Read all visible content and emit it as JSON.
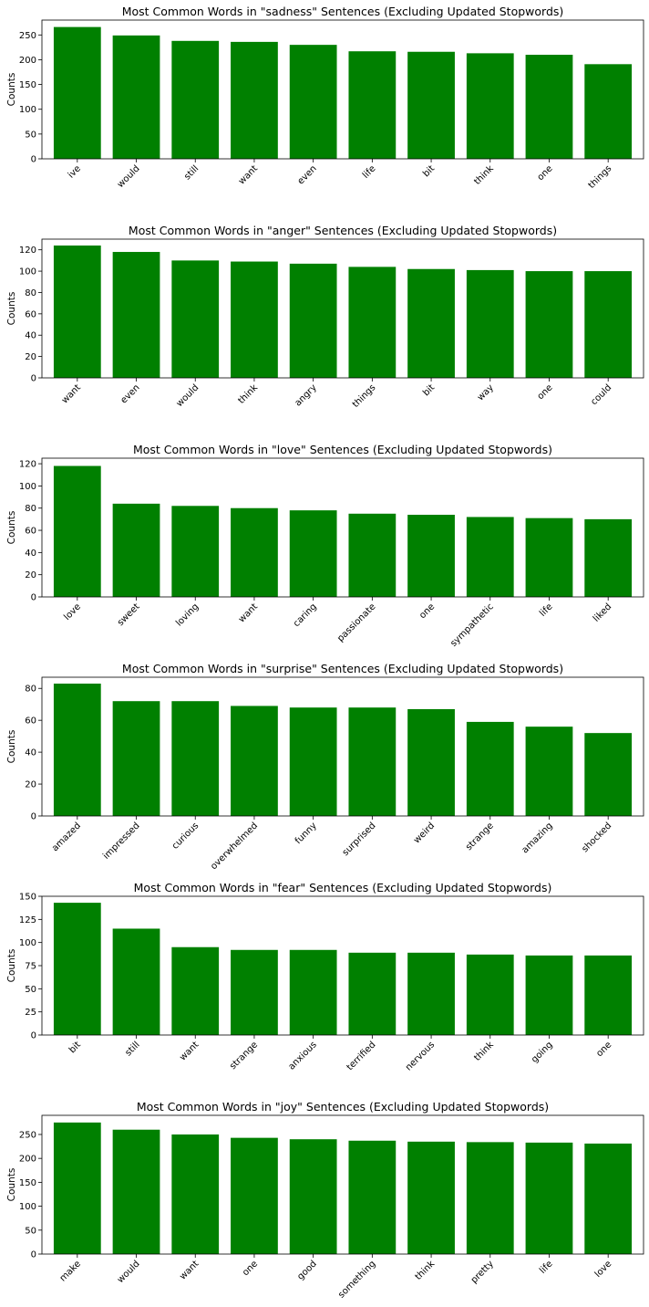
{
  "chart_data": [
    {
      "type": "bar",
      "title": "Most Common Words in \"sadness\" Sentences (Excluding Updated Stopwords)",
      "xlabel": "",
      "ylabel": "Counts",
      "ylim": [
        0,
        280
      ],
      "yticks": [
        0,
        50,
        100,
        150,
        200,
        250
      ],
      "color": "#008000",
      "categories": [
        "ive",
        "would",
        "still",
        "want",
        "even",
        "life",
        "bit",
        "think",
        "one",
        "things"
      ],
      "values": [
        266,
        249,
        238,
        236,
        230,
        217,
        216,
        213,
        210,
        191
      ]
    },
    {
      "type": "bar",
      "title": "Most Common Words in \"anger\" Sentences (Excluding Updated Stopwords)",
      "xlabel": "",
      "ylabel": "Counts",
      "ylim": [
        0,
        130
      ],
      "yticks": [
        0,
        20,
        40,
        60,
        80,
        100,
        120
      ],
      "color": "#008000",
      "categories": [
        "want",
        "even",
        "would",
        "think",
        "angry",
        "things",
        "bit",
        "way",
        "one",
        "could"
      ],
      "values": [
        124,
        118,
        110,
        109,
        107,
        104,
        102,
        101,
        100,
        100
      ]
    },
    {
      "type": "bar",
      "title": "Most Common Words in \"love\" Sentences (Excluding Updated Stopwords)",
      "xlabel": "",
      "ylabel": "Counts",
      "ylim": [
        0,
        125
      ],
      "yticks": [
        0,
        20,
        40,
        60,
        80,
        100,
        120
      ],
      "color": "#008000",
      "categories": [
        "love",
        "sweet",
        "loving",
        "want",
        "caring",
        "passionate",
        "one",
        "sympathetic",
        "life",
        "liked"
      ],
      "values": [
        118,
        84,
        82,
        80,
        78,
        75,
        74,
        72,
        71,
        70
      ]
    },
    {
      "type": "bar",
      "title": "Most Common Words in \"surprise\" Sentences (Excluding Updated Stopwords)",
      "xlabel": "",
      "ylabel": "Counts",
      "ylim": [
        0,
        87
      ],
      "yticks": [
        0,
        20,
        40,
        60,
        80
      ],
      "color": "#008000",
      "categories": [
        "amazed",
        "impressed",
        "curious",
        "overwhelmed",
        "funny",
        "surprised",
        "weird",
        "strange",
        "amazing",
        "shocked"
      ],
      "values": [
        83,
        72,
        72,
        69,
        68,
        68,
        67,
        59,
        56,
        52
      ]
    },
    {
      "type": "bar",
      "title": "Most Common Words in \"fear\" Sentences (Excluding Updated Stopwords)",
      "xlabel": "",
      "ylabel": "Counts",
      "ylim": [
        0,
        150
      ],
      "yticks": [
        0,
        25,
        50,
        75,
        100,
        125,
        150
      ],
      "color": "#008000",
      "categories": [
        "bit",
        "still",
        "want",
        "strange",
        "anxious",
        "terrified",
        "nervous",
        "think",
        "going",
        "one"
      ],
      "values": [
        143,
        115,
        95,
        92,
        92,
        89,
        89,
        87,
        86,
        86
      ]
    },
    {
      "type": "bar",
      "title": "Most Common Words in \"joy\" Sentences (Excluding Updated Stopwords)",
      "xlabel": "",
      "ylabel": "Counts",
      "ylim": [
        0,
        290
      ],
      "yticks": [
        0,
        50,
        100,
        150,
        200,
        250
      ],
      "color": "#008000",
      "categories": [
        "make",
        "would",
        "want",
        "one",
        "good",
        "something",
        "think",
        "pretty",
        "life",
        "love"
      ],
      "values": [
        275,
        260,
        250,
        243,
        240,
        237,
        235,
        234,
        233,
        231
      ]
    }
  ]
}
